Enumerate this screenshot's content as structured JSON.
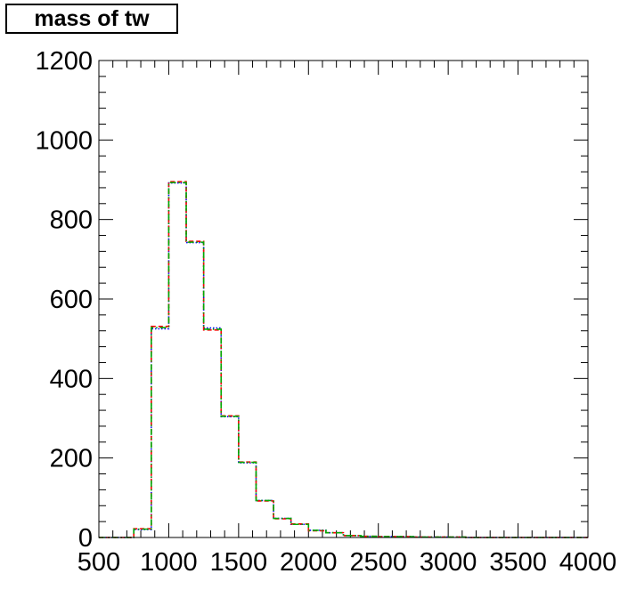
{
  "chart_data": {
    "type": "line",
    "title": "mass of tw",
    "xlabel": "",
    "ylabel": "",
    "xlim": [
      500,
      4000
    ],
    "ylim": [
      0,
      1200
    ],
    "xticks": [
      "500",
      "1000",
      "1500",
      "2000",
      "2500",
      "3000",
      "3500",
      "4000"
    ],
    "yticks": [
      "0",
      "200",
      "400",
      "600",
      "800",
      "1000",
      "1200"
    ],
    "grid": false,
    "bin_edges": [
      500,
      625,
      750,
      875,
      1000,
      1125,
      1250,
      1375,
      1500,
      1625,
      1750,
      1875,
      2000,
      2125,
      2250,
      2375,
      2500,
      2625,
      2750,
      2875,
      3000,
      3125,
      3250,
      3375,
      3500,
      3625,
      3750,
      3875,
      4000
    ],
    "series": [
      {
        "color": "#0000ff",
        "style": "dotted",
        "values": [
          0,
          0,
          20,
          525,
          892,
          742,
          527,
          304,
          188,
          93,
          48,
          33,
          18,
          12,
          5,
          3,
          2,
          2,
          1,
          1,
          1,
          0,
          0,
          0,
          0,
          0,
          0,
          0
        ]
      },
      {
        "color": "#ff0000",
        "style": "dashed",
        "values": [
          0,
          0,
          22,
          531,
          895,
          745,
          522,
          306,
          190,
          92,
          47,
          34,
          17,
          12,
          5,
          3,
          2,
          2,
          1,
          1,
          1,
          0,
          0,
          0,
          0,
          0,
          0,
          0
        ]
      },
      {
        "color": "#00aa00",
        "style": "dashdot",
        "values": [
          0,
          0,
          21,
          528,
          893,
          743,
          524,
          305,
          189,
          93,
          48,
          33,
          18,
          12,
          5,
          3,
          2,
          2,
          1,
          1,
          1,
          0,
          0,
          0,
          0,
          0,
          0,
          0
        ]
      }
    ]
  }
}
